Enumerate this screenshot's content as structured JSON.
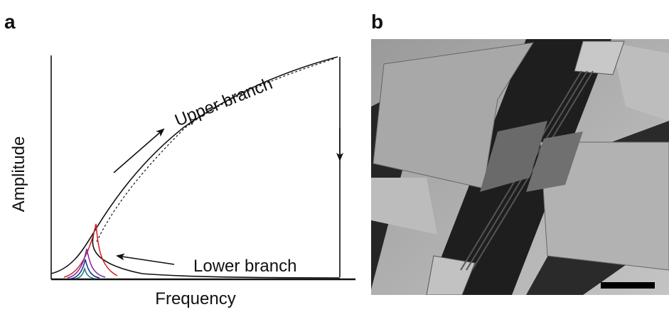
{
  "panel_a": {
    "label": "a",
    "y_axis_label": "Amplitude",
    "x_axis_label": "Frequency",
    "upper_annotation": "Upper branch",
    "lower_annotation": "Lower branch"
  },
  "panel_b": {
    "label": "b"
  }
}
